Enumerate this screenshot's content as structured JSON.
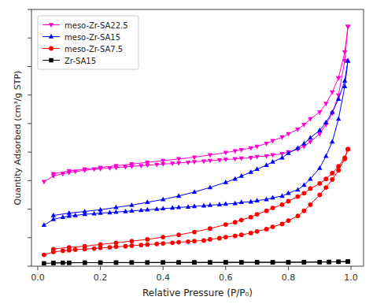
{
  "chart_data": {
    "type": "line",
    "x_label": "Relative Pressure (P/P₀)",
    "y_label": "Quantity Adsorbed (cm³/g STP)",
    "xlim": [
      -0.02,
      1.04
    ],
    "xticks": [
      {
        "value": 0,
        "label": "0.0"
      },
      0.2,
      0.4,
      0.6,
      0.8,
      {
        "value": 1,
        "label": "1.0"
      }
    ],
    "ylim": [
      0,
      450
    ],
    "yticks": [
      0,
      50,
      100,
      150,
      200,
      250,
      300,
      350,
      400,
      450
    ],
    "tick_labels": "x",
    "grid": false,
    "legend": "upper left",
    "series": [
      {
        "name": "meso-Zr-SA22.5",
        "color": "#FF00CC",
        "marker": "triangle-down",
        "x": [
          0.02,
          0.05,
          0.08,
          0.1,
          0.12,
          0.15,
          0.18,
          0.2,
          0.23,
          0.25,
          0.28,
          0.3,
          0.33,
          0.35,
          0.38,
          0.4,
          0.43,
          0.45,
          0.48,
          0.5,
          0.53,
          0.55,
          0.58,
          0.6,
          0.63,
          0.65,
          0.68,
          0.7,
          0.73,
          0.75,
          0.78,
          0.8,
          0.83,
          0.85,
          0.87,
          0.9,
          0.92,
          0.94,
          0.96,
          0.98,
          0.99
        ],
        "values": [
          148,
          158,
          162,
          164,
          166,
          168,
          170,
          171,
          172,
          173,
          174,
          175,
          176,
          177,
          178,
          179,
          180,
          181,
          182,
          183,
          184,
          185,
          186,
          187,
          188,
          189,
          190,
          192,
          193,
          195,
          197,
          200,
          205,
          210,
          218,
          232,
          248,
          268,
          300,
          360,
          420
        ]
      },
      {
        "color": "#FF00CC",
        "marker": "triangle-down",
        "x": [
          0.99,
          0.98,
          0.96,
          0.94,
          0.92,
          0.9,
          0.87,
          0.85,
          0.83,
          0.8,
          0.78,
          0.75,
          0.73,
          0.7,
          0.68,
          0.65,
          0.63,
          0.6,
          0.55,
          0.5,
          0.45,
          0.4,
          0.35,
          0.3,
          0.25,
          0.2,
          0.15,
          0.1,
          0.05
        ],
        "values": [
          420,
          375,
          330,
          305,
          285,
          270,
          258,
          248,
          240,
          232,
          226,
          220,
          215,
          210,
          207,
          204,
          202,
          199,
          195,
          191,
          188,
          185,
          182,
          179,
          176,
          173,
          170,
          167,
          162
        ]
      },
      {
        "name": "meso-Zr-SA15",
        "color": "#0000FF",
        "marker": "triangle-up",
        "x": [
          0.02,
          0.05,
          0.08,
          0.1,
          0.12,
          0.15,
          0.18,
          0.2,
          0.23,
          0.25,
          0.28,
          0.3,
          0.33,
          0.35,
          0.38,
          0.4,
          0.43,
          0.45,
          0.48,
          0.5,
          0.53,
          0.55,
          0.58,
          0.6,
          0.63,
          0.65,
          0.68,
          0.7,
          0.73,
          0.75,
          0.78,
          0.8,
          0.83,
          0.85,
          0.87,
          0.9,
          0.92,
          0.94,
          0.96,
          0.98,
          0.99
        ],
        "values": [
          72,
          82,
          86,
          88,
          89,
          91,
          92,
          93,
          94,
          95,
          96,
          97,
          98,
          99,
          100,
          101,
          102,
          103,
          104,
          105,
          106,
          107,
          108,
          109,
          110,
          112,
          113,
          115,
          117,
          120,
          123,
          128,
          134,
          142,
          153,
          172,
          193,
          218,
          258,
          315,
          360
        ]
      },
      {
        "color": "#0000FF",
        "marker": "triangle-up",
        "x": [
          0.99,
          0.98,
          0.96,
          0.94,
          0.92,
          0.9,
          0.87,
          0.85,
          0.83,
          0.8,
          0.78,
          0.75,
          0.73,
          0.7,
          0.68,
          0.65,
          0.63,
          0.6,
          0.55,
          0.5,
          0.45,
          0.4,
          0.35,
          0.3,
          0.25,
          0.2,
          0.15,
          0.1,
          0.05
        ],
        "values": [
          360,
          325,
          293,
          270,
          252,
          238,
          225,
          215,
          207,
          198,
          190,
          183,
          177,
          170,
          165,
          158,
          153,
          147,
          138,
          130,
          123,
          117,
          112,
          107,
          103,
          99,
          96,
          93,
          89
        ]
      },
      {
        "name": "meso-Zr-SA7.5",
        "color": "#FF0000",
        "marker": "circle",
        "x": [
          0.02,
          0.05,
          0.08,
          0.1,
          0.12,
          0.15,
          0.18,
          0.2,
          0.23,
          0.25,
          0.28,
          0.3,
          0.33,
          0.35,
          0.38,
          0.4,
          0.43,
          0.45,
          0.48,
          0.5,
          0.53,
          0.55,
          0.58,
          0.6,
          0.63,
          0.65,
          0.68,
          0.7,
          0.73,
          0.75,
          0.78,
          0.8,
          0.83,
          0.85,
          0.87,
          0.9,
          0.92,
          0.94,
          0.96,
          0.98,
          0.99
        ],
        "values": [
          20,
          25,
          27,
          28,
          29,
          30,
          31,
          32,
          33,
          34,
          35,
          36,
          37,
          38,
          39,
          40,
          41,
          42,
          43,
          44,
          45,
          47,
          49,
          51,
          53,
          55,
          58,
          61,
          65,
          69,
          74,
          80,
          88,
          97,
          108,
          125,
          138,
          152,
          168,
          188,
          205
        ]
      },
      {
        "color": "#FF0000",
        "marker": "circle",
        "x": [
          0.99,
          0.98,
          0.96,
          0.94,
          0.92,
          0.9,
          0.87,
          0.85,
          0.83,
          0.8,
          0.78,
          0.75,
          0.73,
          0.7,
          0.68,
          0.65,
          0.63,
          0.6,
          0.55,
          0.5,
          0.45,
          0.4,
          0.35,
          0.3,
          0.25,
          0.2,
          0.15,
          0.1,
          0.05
        ],
        "values": [
          205,
          190,
          175,
          163,
          153,
          145,
          136,
          128,
          122,
          114,
          108,
          102,
          97,
          91,
          86,
          81,
          77,
          73,
          66,
          60,
          55,
          51,
          47,
          44,
          41,
          38,
          35,
          33,
          30
        ]
      },
      {
        "name": "Zr-SA15",
        "color": "#000000",
        "marker": "square",
        "x": [
          0.02,
          0.05,
          0.08,
          0.1,
          0.15,
          0.2,
          0.25,
          0.3,
          0.35,
          0.4,
          0.45,
          0.5,
          0.55,
          0.6,
          0.65,
          0.7,
          0.75,
          0.8,
          0.85,
          0.9,
          0.93,
          0.96,
          0.99
        ],
        "values": [
          5,
          5.5,
          6,
          6,
          6.2,
          6.3,
          6.3,
          6.4,
          6.4,
          6.5,
          6.5,
          6.6,
          6.6,
          6.7,
          6.7,
          6.8,
          6.8,
          6.9,
          7.0,
          7.2,
          7.4,
          7.7,
          8.2
        ]
      },
      {
        "color": "#000000",
        "marker": "square",
        "x": [
          0.99,
          0.96,
          0.93,
          0.9,
          0.85,
          0.8,
          0.75,
          0.7,
          0.65,
          0.6,
          0.55,
          0.5,
          0.45,
          0.4,
          0.35,
          0.3,
          0.25,
          0.2,
          0.15,
          0.1,
          0.05
        ],
        "values": [
          8.2,
          7.8,
          7.5,
          7.3,
          7.1,
          6.9,
          6.8,
          6.8,
          6.7,
          6.7,
          6.6,
          6.6,
          6.5,
          6.5,
          6.4,
          6.4,
          6.3,
          6.3,
          6.2,
          6.0,
          5.8
        ]
      }
    ]
  }
}
